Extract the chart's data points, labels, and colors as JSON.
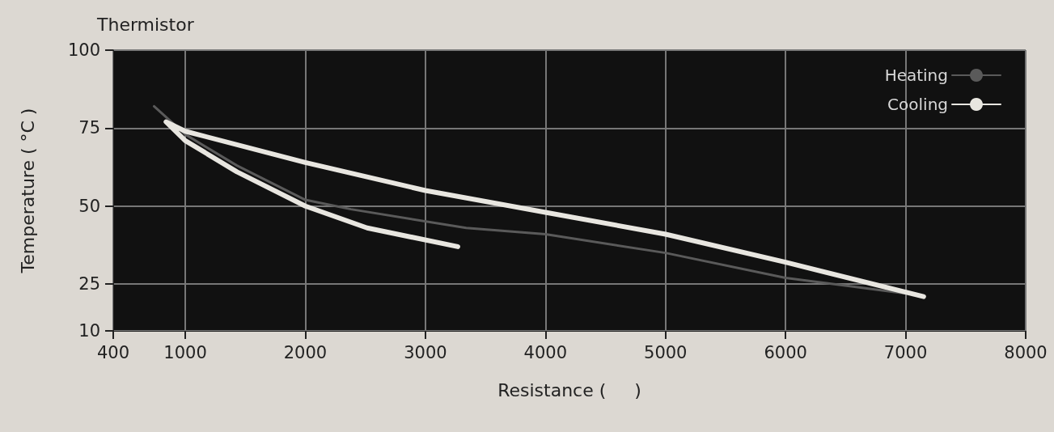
{
  "chart_data": {
    "type": "line",
    "title": "Thermistor",
    "xlabel": "Resistance (     )",
    "ylabel": "Temperature ( °C )",
    "xlim": [
      400,
      8000
    ],
    "xticks": [
      400,
      1000,
      2000,
      3000,
      4000,
      5000,
      6000,
      7000,
      8000
    ],
    "ylim": [
      10,
      100
    ],
    "yticks": [
      10,
      25,
      50,
      75,
      100
    ],
    "grid": true,
    "legend": "top right",
    "series": [
      {
        "name": "Heating",
        "color": "#5a5a5a",
        "x": [
          740,
          1000,
          1430,
          2000,
          2380,
          3340,
          4000,
          5000,
          6000,
          7000
        ],
        "values": [
          82,
          73,
          63,
          52,
          49,
          43,
          41,
          35,
          27,
          22
        ]
      },
      {
        "name": "Cooling",
        "color": "#e8e6e0",
        "x": [
          3270,
          2515,
          2000,
          1430,
          1000,
          840,
          1000,
          2000,
          3000,
          4000,
          5000,
          6000,
          7150
        ],
        "values": [
          37,
          43,
          50,
          61,
          71,
          77,
          74,
          64,
          55,
          48,
          41,
          32,
          21
        ]
      }
    ]
  }
}
